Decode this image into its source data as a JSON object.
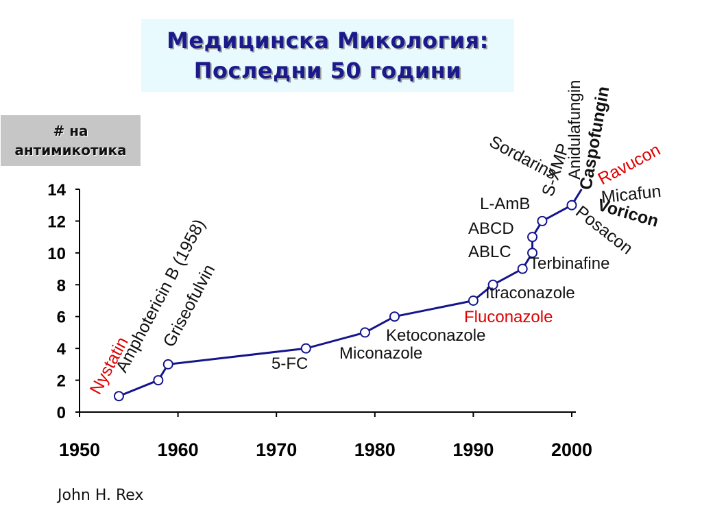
{
  "title": {
    "line1": "Медицинска Микология:",
    "line2": "Последни 50 години"
  },
  "ylabel": {
    "line1": "# на",
    "line2": "антимикотика"
  },
  "credit": "John H. Rex",
  "colors": {
    "series": "#14148c",
    "marker_fill": "#ffffff",
    "highlight": "#e00000",
    "label": "#111111",
    "title_bg": "#e8fafd",
    "ylabel_bg": "#c6c6c6"
  },
  "chart_data": {
    "type": "line",
    "xlim": [
      1950,
      2000
    ],
    "ylim": [
      0,
      14
    ],
    "xticks": [
      1950,
      1960,
      1970,
      1980,
      1990,
      2000
    ],
    "yticks": [
      0,
      2,
      4,
      6,
      8,
      10,
      12,
      14
    ],
    "grid": false,
    "series": [
      {
        "x": [
          1954,
          1958,
          1959,
          1973,
          1979,
          1982,
          1990,
          1992,
          1995,
          1996,
          1996,
          1997,
          2000,
          2001
        ],
        "y": [
          1,
          2,
          3,
          4,
          5,
          6,
          7,
          8,
          9,
          10,
          11,
          12,
          13,
          14
        ]
      }
    ],
    "annotations": [
      {
        "text": "Nystatin",
        "color": "red",
        "bold": false
      },
      {
        "text": "Amphotericin B (1958)",
        "color": "black",
        "bold": false
      },
      {
        "text": "Griseofulvin",
        "color": "black",
        "bold": false
      },
      {
        "text": "5-FC",
        "color": "black",
        "bold": false
      },
      {
        "text": "Miconazole",
        "color": "black",
        "bold": false
      },
      {
        "text": "Ketoconazole",
        "color": "black",
        "bold": false
      },
      {
        "text": "Fluconazole",
        "color": "red",
        "bold": false
      },
      {
        "text": "Itraconazole",
        "color": "black",
        "bold": false
      },
      {
        "text": "Terbinafine",
        "color": "black",
        "bold": false
      },
      {
        "text": "ABLC",
        "color": "black",
        "bold": false
      },
      {
        "text": "ABCD",
        "color": "black",
        "bold": false
      },
      {
        "text": "L-AmB",
        "color": "black",
        "bold": false
      },
      {
        "text": "Sordarins",
        "color": "black",
        "bold": false
      },
      {
        "text": "S-XMP",
        "color": "black",
        "bold": false
      },
      {
        "text": "Anidulafungin",
        "color": "black",
        "bold": false
      },
      {
        "text": "Caspofungin",
        "color": "black",
        "bold": true
      },
      {
        "text": "Ravucon",
        "color": "red",
        "bold": false
      },
      {
        "text": "Micafun",
        "color": "black",
        "bold": false
      },
      {
        "text": "Voricon",
        "color": "black",
        "bold": true
      },
      {
        "text": "Posacon",
        "color": "black",
        "bold": false
      }
    ]
  }
}
